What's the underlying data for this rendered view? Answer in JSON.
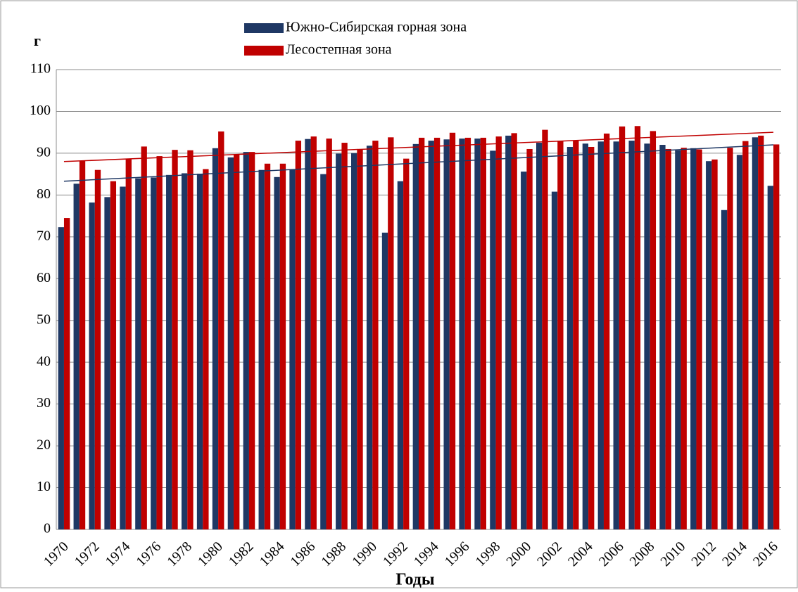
{
  "chart_data": {
    "type": "bar",
    "y_label": "г",
    "x_label": "Годы",
    "categories": [
      "1970",
      null,
      "1972",
      null,
      "1974",
      null,
      "1976",
      null,
      "1978",
      null,
      "1980",
      null,
      "1982",
      null,
      "1984",
      null,
      "1986",
      null,
      "1988",
      null,
      "1990",
      null,
      "1992",
      null,
      "1994",
      null,
      "1996",
      null,
      "1998",
      null,
      "2000",
      null,
      "2002",
      null,
      "2004",
      null,
      "2006",
      null,
      "2008",
      null,
      "2010",
      null,
      "2012",
      null,
      "2014",
      null,
      "2016"
    ],
    "series": [
      {
        "name": "Южно-Сибирская горная зона",
        "color": "#1f3864",
        "values": [
          72.3,
          82.7,
          78.2,
          79.5,
          82.0,
          84.0,
          84.2,
          84.8,
          85.2,
          85.1,
          91.2,
          89.0,
          90.3,
          86.0,
          84.3,
          86.0,
          93.4,
          85.0,
          89.9,
          90.0,
          91.8,
          71.0,
          83.3,
          92.2,
          93.0,
          93.3,
          93.5,
          93.5,
          90.6,
          94.2,
          85.6,
          92.5,
          80.8,
          91.5,
          92.3,
          92.8,
          92.8,
          93.0,
          92.3,
          92.0,
          90.7,
          91.2,
          88.1,
          76.4,
          89.6,
          93.8,
          82.2
        ],
        "trend": [
          83.3,
          92.0
        ]
      },
      {
        "name": "Лесостепная зона",
        "color": "#c00000",
        "values": [
          74.5,
          88.2,
          86.0,
          83.3,
          88.7,
          91.6,
          89.3,
          90.8,
          90.7,
          86.2,
          95.2,
          89.7,
          90.3,
          87.5,
          87.5,
          93.0,
          94.0,
          93.5,
          92.5,
          91.0,
          93.0,
          93.8,
          88.7,
          93.7,
          93.7,
          94.9,
          93.7,
          93.7,
          94.0,
          94.8,
          91.0,
          95.6,
          93.0,
          93.0,
          91.5,
          94.7,
          96.4,
          96.5,
          95.3,
          91.0,
          91.3,
          90.9,
          88.5,
          91.3,
          92.9,
          94.2,
          92.1
        ],
        "trend": [
          88.0,
          95.0
        ]
      }
    ],
    "ylim": [
      0,
      110
    ],
    "yticks": [
      0,
      10,
      20,
      30,
      40,
      50,
      60,
      70,
      80,
      90,
      100,
      110
    ],
    "grid": true,
    "legend": "top"
  }
}
